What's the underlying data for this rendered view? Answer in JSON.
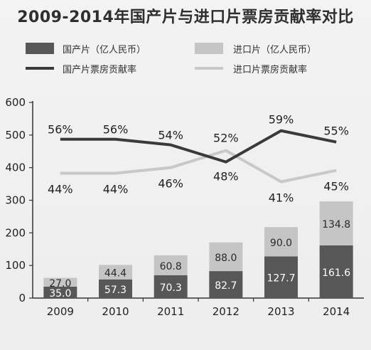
{
  "title": "2009-2014年国产片与进口片票房贡献率对比",
  "legend": {
    "domestic_box": "国产片（亿人民币）",
    "import_box": "进口片（亿人民币）",
    "domestic_rate": "国产片票房贡献率",
    "import_rate": "进口片票房贡献率"
  },
  "colors": {
    "domestic_bar": "#575757",
    "import_bar": "#c5c5c5",
    "domestic_line": "#3a3a3a",
    "import_line": "#c8c8c8",
    "background": "#efefef"
  },
  "chart_data": {
    "type": "bar",
    "stacked": true,
    "title": "2009-2014年国产片与进口片票房贡献率对比",
    "categories": [
      "2009",
      "2010",
      "2011",
      "2012",
      "2013",
      "2014"
    ],
    "ylim": [
      0,
      600
    ],
    "yticks": [
      0,
      100,
      200,
      300,
      400,
      500,
      600
    ],
    "grid": false,
    "legend_position": "top",
    "series": [
      {
        "name": "国产片（亿人民币）",
        "type": "bar",
        "values": [
          35.0,
          57.3,
          70.3,
          82.7,
          127.7,
          161.6
        ],
        "labels": [
          "35.0",
          "57.3",
          "70.3",
          "82.7",
          "127.7",
          "161.6"
        ]
      },
      {
        "name": "进口片（亿人民币）",
        "type": "bar",
        "values": [
          27.0,
          44.4,
          60.8,
          88.0,
          90.0,
          134.8
        ],
        "labels": [
          "27.0",
          "44.4",
          "60.8",
          "88.0",
          "90.0",
          "134.8"
        ]
      },
      {
        "name": "国产片票房贡献率",
        "type": "line",
        "values": [
          56,
          56,
          54,
          48,
          59,
          55
        ],
        "labels": [
          "56%",
          "56%",
          "54%",
          "48%",
          "59%",
          "55%"
        ]
      },
      {
        "name": "进口片票房贡献率",
        "type": "line",
        "values": [
          44,
          44,
          46,
          52,
          41,
          45
        ],
        "labels": [
          "44%",
          "44%",
          "46%",
          "52%",
          "41%",
          "45%"
        ]
      }
    ]
  }
}
